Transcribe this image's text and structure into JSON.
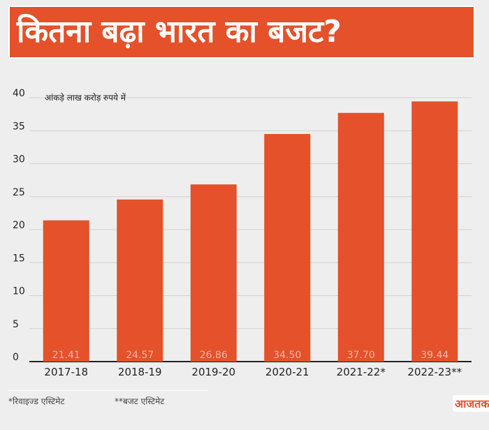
{
  "header": {
    "title": "कितना बढ़ा भारत का बजट?"
  },
  "chart_data": {
    "type": "bar",
    "title": "कितना बढ़ा भारत का बजट?",
    "subtitle": "आंकड़े लाख करोड़ रुपये में",
    "categories": [
      "2017-18",
      "2018-19",
      "2019-20",
      "2020-21",
      "2021-22*",
      "2022-23**"
    ],
    "values": [
      21.41,
      24.57,
      26.86,
      34.5,
      37.7,
      39.44
    ],
    "value_labels": [
      "21.41",
      "24.57",
      "26.86",
      "34.50",
      "37.70",
      "39.44"
    ],
    "y_ticks": [
      0,
      5,
      10,
      15,
      20,
      25,
      30,
      35,
      40
    ],
    "ylim": [
      0,
      40
    ],
    "grid": true,
    "xlabel": "",
    "ylabel": "",
    "bar_color": "#e4512b",
    "label_color": "#f5b8a6"
  },
  "footnotes": {
    "revised": "*रिवाइज्ड एस्टिमेट",
    "budget": "**बजट एस्टिमेट"
  },
  "logo": {
    "text": "आजतक"
  },
  "colors": {
    "accent": "#e4512b",
    "background": "#eeeeee"
  }
}
